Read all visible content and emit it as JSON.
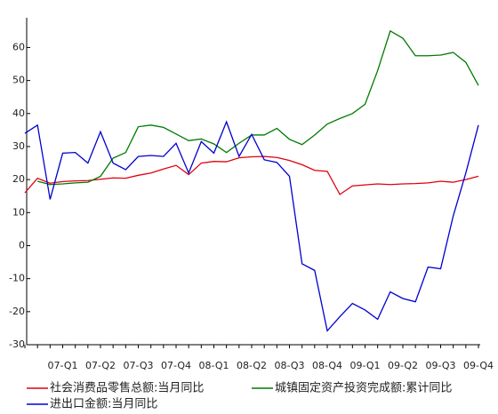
{
  "chart_data": {
    "type": "line",
    "categories": [
      null,
      null,
      null,
      "07-Q1",
      null,
      null,
      "07-Q2",
      null,
      null,
      "07-Q3",
      null,
      null,
      "07-Q4",
      null,
      null,
      "08-Q1",
      null,
      null,
      "08-Q2",
      null,
      null,
      "08-Q3",
      null,
      null,
      "08-Q4",
      null,
      null,
      "09-Q1",
      null,
      null,
      "09-Q2",
      null,
      null,
      "09-Q3",
      null,
      null,
      "09-Q4"
    ],
    "series": [
      {
        "name": "社会消费品零售总额:当月同比",
        "color": "#e0000f",
        "values": [
          16,
          20.4,
          18.9,
          19.4,
          19.6,
          19.7,
          20.1,
          20.5,
          20.4,
          21.3,
          22,
          23.2,
          24.3,
          21.5,
          25,
          25.5,
          25.4,
          26.6,
          26.9,
          27,
          26.7,
          25.8,
          24.5,
          22.8,
          22.5,
          15.5,
          18.1,
          18.4,
          18.7,
          18.5,
          18.7,
          18.8,
          19.0,
          19.5,
          19.2,
          20.0,
          21.0
        ]
      },
      {
        "name": "城镇固定资产投资完成额:累计同比",
        "color": "#007a00",
        "values": [
          null,
          19.5,
          18.5,
          18.7,
          19,
          19.2,
          21,
          26.5,
          28.2,
          36,
          36.5,
          35.8,
          33.8,
          31.8,
          32.3,
          30.8,
          28.2,
          31,
          33.5,
          33.5,
          35.5,
          32.2,
          30.6,
          33.5,
          36.8,
          38.5,
          40,
          42.8,
          53,
          65,
          62.8,
          57.5,
          57.5,
          57.7,
          58.5,
          55.5,
          48.5
        ]
      },
      {
        "name": "进出口金额:当月同比",
        "color": "#0000d0",
        "values": [
          34,
          36.5,
          14,
          28,
          28.2,
          25,
          34.5,
          25,
          23,
          27,
          27.3,
          27,
          31,
          22,
          31.5,
          28,
          37.5,
          27,
          33.7,
          26,
          25.2,
          21,
          -5.5,
          -7.5,
          -25.8,
          -21.5,
          -17.5,
          -19.5,
          -22.3,
          -14,
          -16,
          -17,
          -6.5,
          -7,
          9,
          22,
          36.5
        ]
      }
    ],
    "ylim": [
      -30,
      69
    ],
    "yticks": [
      -30,
      -20,
      -10,
      0,
      10,
      20,
      30,
      40,
      50,
      60
    ],
    "grid": false
  }
}
